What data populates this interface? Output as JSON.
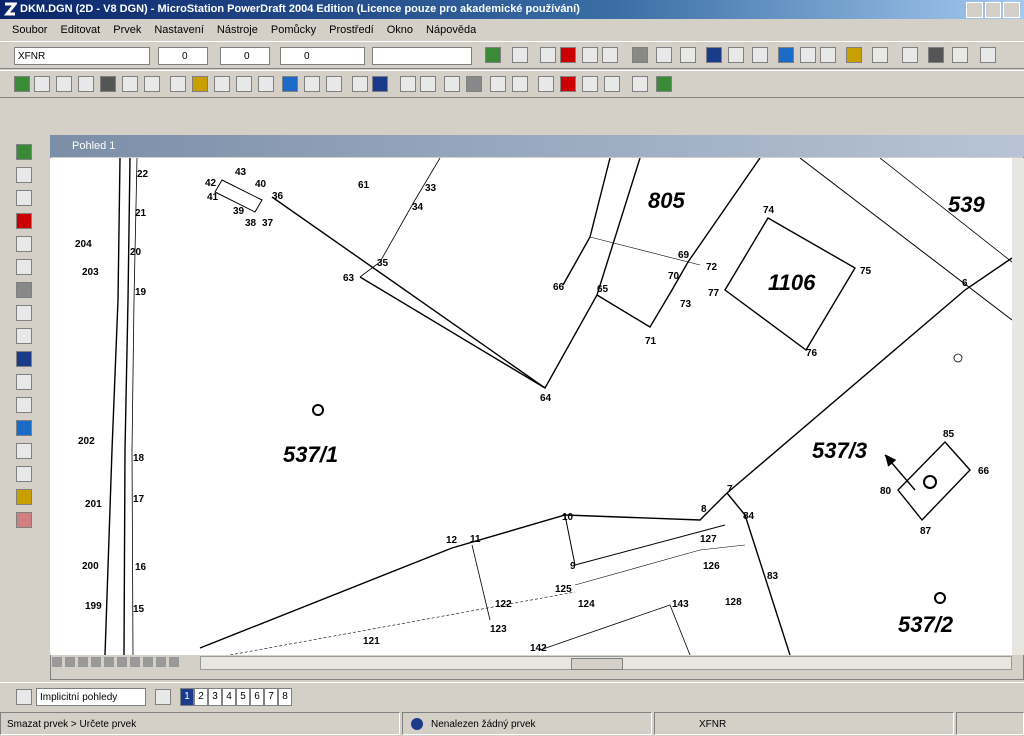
{
  "window": {
    "title": "DKM.DGN (2D - V8 DGN) - MicroStation PowerDraft 2004 Edition (Licence pouze pro akademické používání)"
  },
  "menu": [
    "Soubor",
    "Editovat",
    "Prvek",
    "Nastavení",
    "Nástroje",
    "Pomůcky",
    "Prostředí",
    "Okno",
    "Nápověda"
  ],
  "toolbar": {
    "level": "XFNR",
    "color": "0",
    "style": "0",
    "weight": "0"
  },
  "view": {
    "title": "Pohled 1"
  },
  "drawing": {
    "parcels": [
      "805",
      "539",
      "1106",
      "537/1",
      "537/3",
      "537/2"
    ],
    "points": [
      "22",
      "21",
      "20",
      "204",
      "203",
      "19",
      "202",
      "18",
      "201",
      "17",
      "200",
      "16",
      "199",
      "15",
      "43",
      "42",
      "41",
      "40",
      "36",
      "39",
      "38",
      "37",
      "61",
      "33",
      "34",
      "35",
      "63",
      "66",
      "65",
      "69",
      "72",
      "70",
      "73",
      "71",
      "64",
      "74",
      "75",
      "77",
      "76",
      "6",
      "85",
      "66",
      "80",
      "87",
      "7",
      "8",
      "84",
      "10",
      "12",
      "11",
      "127",
      "126",
      "9",
      "125",
      "124",
      "122",
      "83",
      "128",
      "143",
      "123",
      "121",
      "142"
    ]
  },
  "view_groups": {
    "dropdown": "Implicitní pohledy",
    "views": [
      "1",
      "2",
      "3",
      "4",
      "5",
      "6",
      "7",
      "8"
    ]
  },
  "status": {
    "prompt": "Smazat prvek > Určete prvek",
    "message": "Nenalezen žádný prvek",
    "level": "XFNR"
  }
}
